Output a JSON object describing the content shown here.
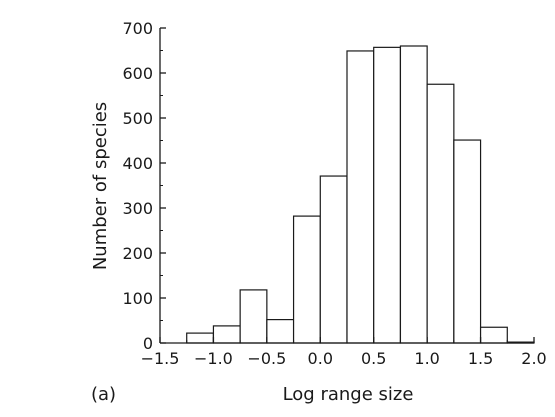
{
  "chart_data": {
    "type": "bar",
    "panel_label": "(a)",
    "xlabel": "Log range size",
    "ylabel": "Number of species",
    "xlim": [
      -1.5,
      2.0
    ],
    "ylim": [
      0,
      700
    ],
    "xticks": [
      -1.5,
      -1.0,
      -0.5,
      0.0,
      0.5,
      1.0,
      1.5,
      2.0
    ],
    "xtick_labels": [
      "−1.5",
      "−1.0",
      "−0.5",
      "0.0",
      "0.5",
      "1.0",
      "1.5",
      "2.0"
    ],
    "yticks": [
      0,
      100,
      200,
      300,
      400,
      500,
      600,
      700
    ],
    "ytick_labels": [
      "0",
      "100",
      "200",
      "300",
      "400",
      "500",
      "600",
      "700"
    ],
    "bin_width": 0.25,
    "bins": [
      {
        "x0": -1.25,
        "value": 22
      },
      {
        "x0": -1.0,
        "value": 38
      },
      {
        "x0": -0.75,
        "value": 118
      },
      {
        "x0": -0.5,
        "value": 52
      },
      {
        "x0": -0.25,
        "value": 282
      },
      {
        "x0": 0.0,
        "value": 371
      },
      {
        "x0": 0.25,
        "value": 649
      },
      {
        "x0": 0.5,
        "value": 657
      },
      {
        "x0": 0.75,
        "value": 660
      },
      {
        "x0": 1.0,
        "value": 575
      },
      {
        "x0": 1.25,
        "value": 451
      },
      {
        "x0": 1.5,
        "value": 35
      },
      {
        "x0": 1.75,
        "value": 2
      }
    ],
    "grid": false,
    "bar_fill": "#ffffff",
    "bar_stroke": "#1a1a1a"
  }
}
